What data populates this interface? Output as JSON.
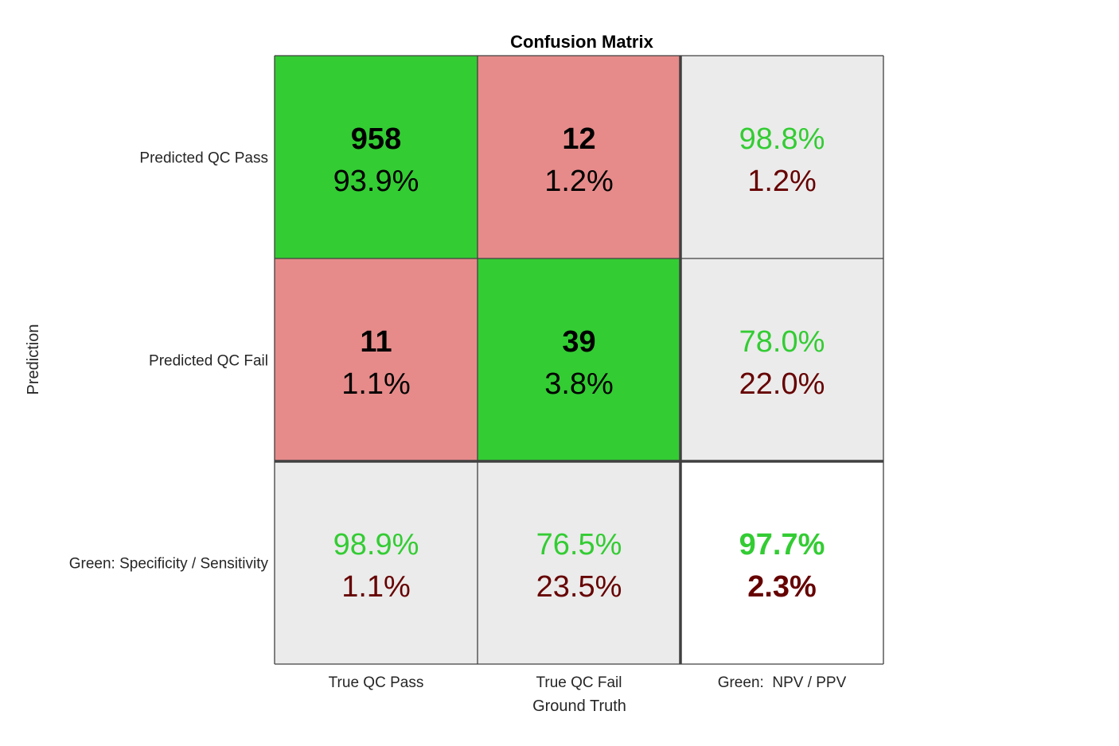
{
  "chart_data": {
    "type": "heatmap",
    "title": "Confusion Matrix",
    "xlabel": "Ground Truth",
    "ylabel": "Prediction",
    "col_labels": [
      "True QC Pass",
      "True QC Fail",
      "Green:  NPV / PPV"
    ],
    "row_labels": [
      "Predicted QC Pass",
      "Predicted QC Fail",
      "Green: Specificity / Sensitivity"
    ],
    "counts": [
      [
        958,
        12
      ],
      [
        11,
        39
      ]
    ],
    "count_percents": [
      [
        "93.9%",
        "1.2%"
      ],
      [
        "1.1%",
        "3.8%"
      ]
    ],
    "row_summary": [
      {
        "good": "98.8%",
        "bad": "1.2%"
      },
      {
        "good": "78.0%",
        "bad": "22.0%"
      }
    ],
    "col_summary": [
      {
        "good": "98.9%",
        "bad": "1.1%"
      },
      {
        "good": "76.5%",
        "bad": "23.5%"
      }
    ],
    "overall": {
      "good": "97.7%",
      "bad": "2.3%"
    },
    "colors": {
      "correct": "#33cc33",
      "incorrect": "#e68b8a",
      "summary": "#ebebeb",
      "overall": "#ffffff",
      "good_text": "#33cc33",
      "bad_text": "#660000",
      "grid": "#404040"
    }
  }
}
